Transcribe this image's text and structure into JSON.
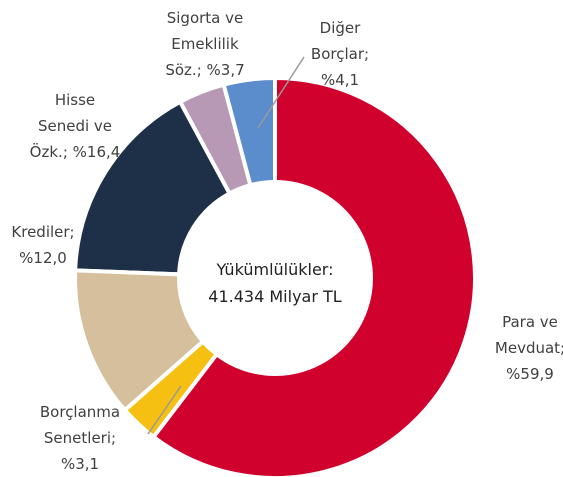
{
  "chart_data": {
    "type": "donut",
    "categories": [
      "Para ve\nMevduat;",
      "Borçlanma\nSenetleri;",
      "Krediler;",
      "Hisse\nSenedi ve\nÖzk.;",
      "Sigorta ve\nEmeklilik\nSöz.;",
      "Diğer\nBorçlar;"
    ],
    "values": [
      59.9,
      3.1,
      12.0,
      16.4,
      3.7,
      4.1
    ],
    "value_labels": [
      "%59,9",
      "%3,1",
      "%12,0",
      "%16,4",
      "%3,7",
      "%4,1"
    ],
    "colors": [
      "#d0022d",
      "#f6c012",
      "#d5bf9c",
      "#1e3047",
      "#b899b5",
      "#5b8ccc"
    ],
    "center_text": [
      "Yükümlülükler:",
      "41.434 Milyar TL"
    ]
  }
}
